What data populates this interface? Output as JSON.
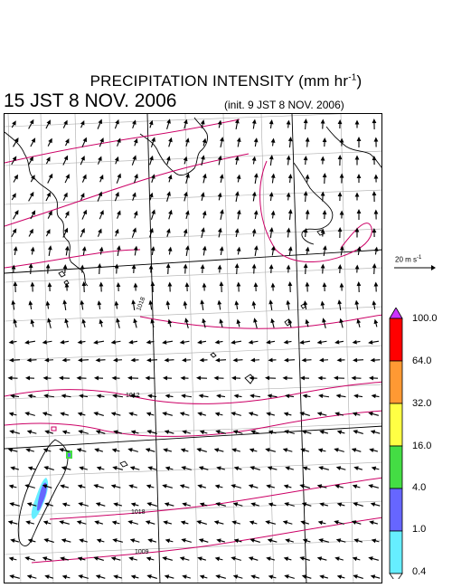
{
  "header": {
    "title": "PRECIPITATION INTENSITY (mm hr",
    "title_exp": "-1",
    "title_close": ")",
    "valid_time": "15 JST 8 NOV. 2006",
    "init_time": "(init. 9 JST 8 NOV. 2006)"
  },
  "reference_vector": {
    "label": "20 m s",
    "label_exp": "-1"
  },
  "isobar_labels": [
    "1018",
    "1012",
    "1018",
    "1009"
  ],
  "colorbar": {
    "levels": [
      "100.0",
      "64.0",
      "32.0",
      "16.0",
      "4.0",
      "1.0",
      "0.4"
    ],
    "colors": [
      "#ff0000",
      "#ff9933",
      "#ffff44",
      "#44dd44",
      "#6666ff",
      "#66eeff",
      "#ffffff"
    ],
    "top_color": "#cc33ff"
  },
  "colors": {
    "isobar": "#cc0066",
    "coast": "#000000",
    "grid": "#aaaaaa",
    "rain_light": "#66eeff",
    "rain_mod": "#6666ff"
  }
}
